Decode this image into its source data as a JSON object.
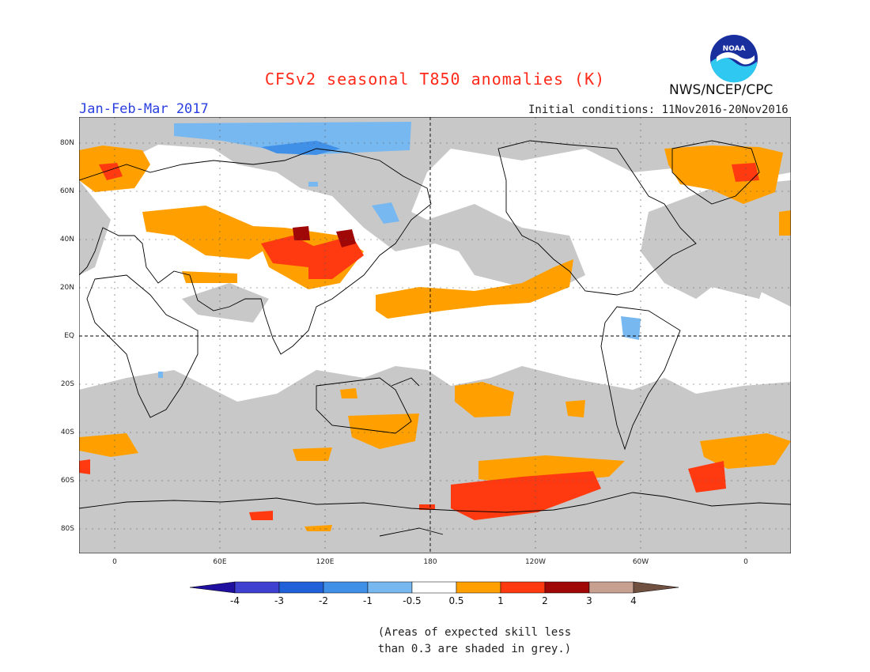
{
  "header": {
    "title": "CFSv2 seasonal T850 anomalies (K)",
    "period": "Jan-Feb-Mar 2017",
    "initial_conditions": "Initial conditions: 11Nov2016-20Nov2016",
    "agency": "NWS/NCEP/CPC",
    "logo_text": "NOAA"
  },
  "map": {
    "lat_labels": [
      "80N",
      "60N",
      "40N",
      "20N",
      "EQ",
      "20S",
      "40S",
      "60S",
      "80S"
    ],
    "lon_labels": [
      "0",
      "60E",
      "120E",
      "180",
      "120W",
      "60W",
      "0"
    ]
  },
  "colorbar": {
    "ticks": [
      "-4",
      "-3",
      "-2",
      "-1",
      "-0.5",
      "0.5",
      "1",
      "2",
      "3",
      "4"
    ],
    "colors": [
      "#2010a0",
      "#4040d0",
      "#2060d8",
      "#4090e8",
      "#78b8f0",
      "#ffffff",
      "#ffa000",
      "#ff3a10",
      "#a00808",
      "#c8a090",
      "#705040"
    ]
  },
  "note": {
    "line1": "(Areas of expected skill less",
    "line2": "than 0.3 are shaded in grey.)"
  }
}
